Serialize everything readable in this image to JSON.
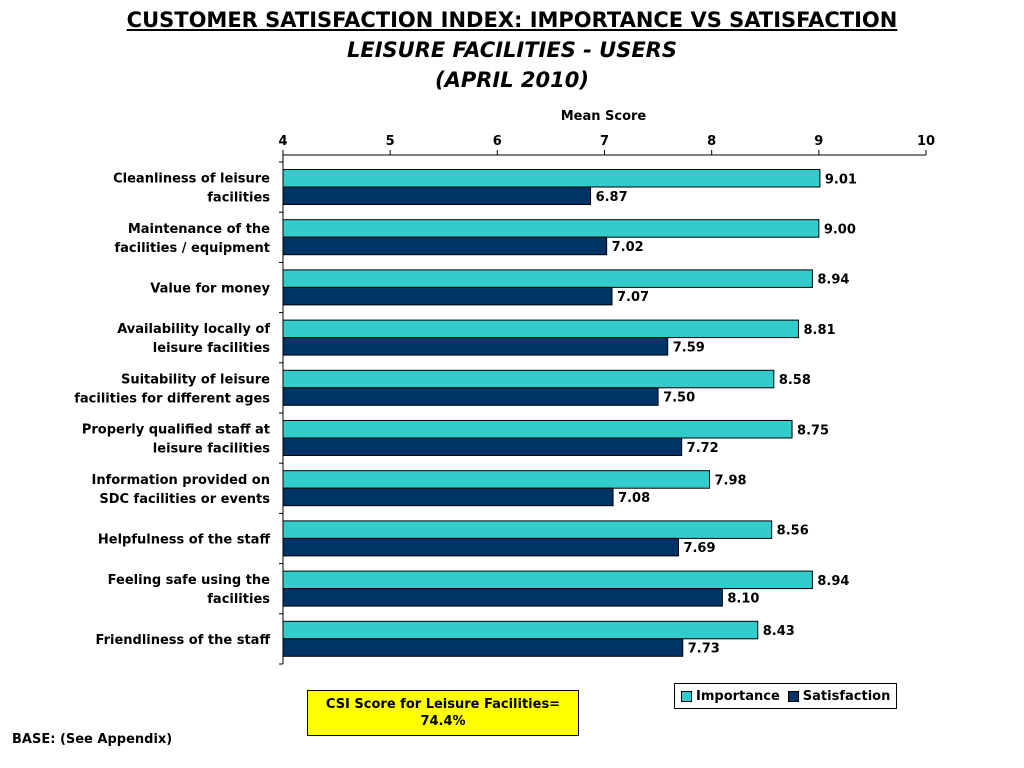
{
  "titles": {
    "line1": "CUSTOMER SATISFACTION INDEX: IMPORTANCE VS SATISFACTION",
    "line2": "LEISURE FACILITIES - USERS",
    "line3": "(APRIL 2010)"
  },
  "chart_data": {
    "type": "bar",
    "orientation": "horizontal",
    "xlabel": "Mean Score",
    "xlim": [
      4,
      10
    ],
    "xticks": [
      "4",
      "5",
      "6",
      "7",
      "8",
      "9",
      "10"
    ],
    "categories": [
      [
        "Cleanliness of leisure",
        "facilities"
      ],
      [
        "Maintenance of the",
        "facilities / equipment"
      ],
      [
        "Value for money"
      ],
      [
        "Availability locally of",
        "leisure facilities"
      ],
      [
        "Suitability of leisure",
        "facilities for different ages"
      ],
      [
        "Properly qualified staff at",
        "leisure facilities"
      ],
      [
        "Information provided on",
        "SDC facilities or events"
      ],
      [
        "Helpfulness of the staff"
      ],
      [
        "Feeling safe using the",
        "facilities"
      ],
      [
        "Friendliness of the staff"
      ]
    ],
    "series": [
      {
        "name": "Importance",
        "color": "#33cccc",
        "values": [
          9.01,
          9.0,
          8.94,
          8.81,
          8.58,
          8.75,
          7.98,
          8.56,
          8.94,
          8.43
        ],
        "labels": [
          "9.01",
          "9.00",
          "8.94",
          "8.81",
          "8.58",
          "8.75",
          "7.98",
          "8.56",
          "8.94",
          "8.43"
        ]
      },
      {
        "name": "Satisfaction",
        "color": "#003366",
        "values": [
          6.87,
          7.02,
          7.07,
          7.59,
          7.5,
          7.72,
          7.08,
          7.69,
          8.1,
          7.73
        ],
        "labels": [
          "6.87",
          "7.02",
          "7.07",
          "7.59",
          "7.50",
          "7.72",
          "7.08",
          "7.69",
          "8.10",
          "7.73"
        ]
      }
    ],
    "legend_position": "bottom-right",
    "grid": false
  },
  "legend": {
    "importance": "Importance",
    "satisfaction": "Satisfaction"
  },
  "csi_box": {
    "text": "CSI Score for Leisure Facilities= 74.4%",
    "color": "#ffff00"
  },
  "footer": {
    "base": "BASE: (See Appendix)"
  }
}
